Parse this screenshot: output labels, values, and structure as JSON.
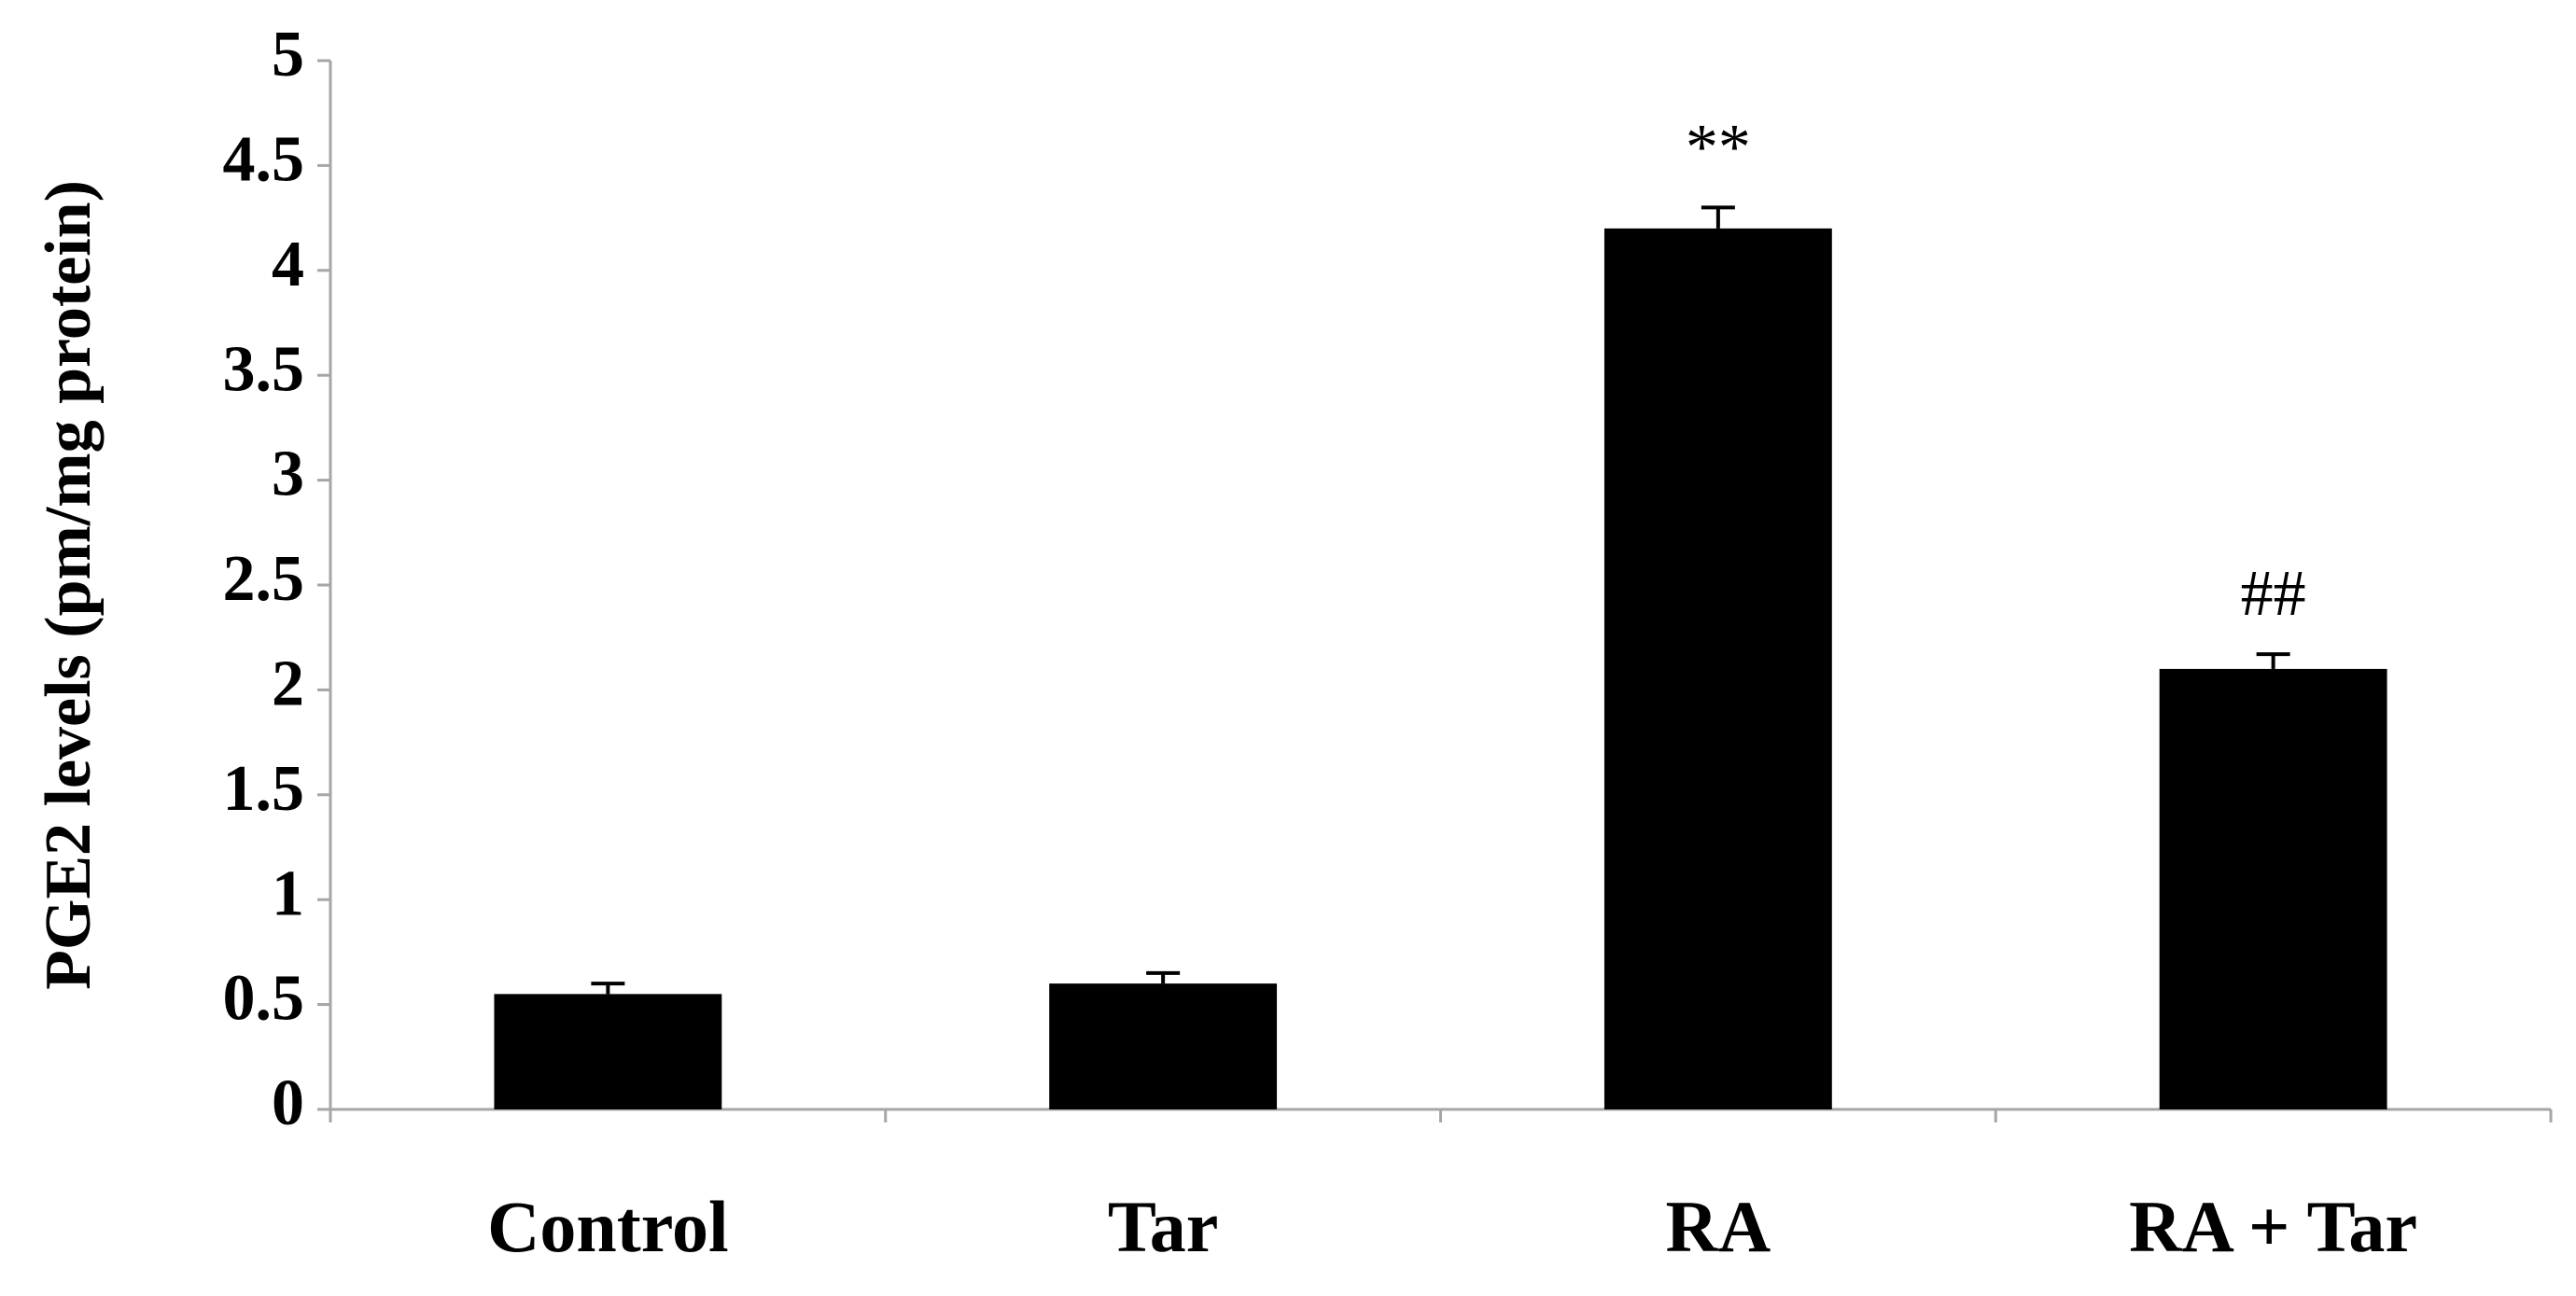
{
  "chart_data": {
    "type": "bar",
    "y_label": "PGE2 levels (pm/mg protein)",
    "categories": [
      "Control",
      "Tar",
      "RA",
      "RA + Tar"
    ],
    "values": [
      0.55,
      0.6,
      4.2,
      2.1
    ],
    "errors": [
      0.05,
      0.05,
      0.1,
      0.07
    ],
    "significance": [
      null,
      null,
      "**",
      "##"
    ],
    "color": "#000000",
    "ylim": [
      0,
      5
    ],
    "yticks": [
      0,
      0.5,
      1,
      1.5,
      2,
      2.5,
      3,
      3.5,
      4,
      4.5,
      5
    ],
    "grid": false
  }
}
